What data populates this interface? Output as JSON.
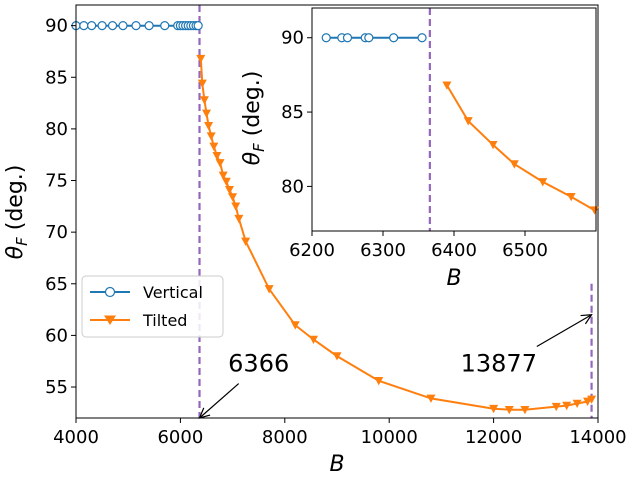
{
  "chart_data": [
    {
      "id": "main",
      "type": "line",
      "title": "",
      "xlabel": "B",
      "ylabel": "θ_F (deg.)",
      "ylabel_main": "θ",
      "ylabel_sub": "F",
      "ylabel_tail": " (deg.)",
      "xlim": [
        4000,
        14000
      ],
      "ylim": [
        52,
        92
      ],
      "xticks": [
        4000,
        6000,
        8000,
        10000,
        12000,
        14000
      ],
      "yticks": [
        55,
        60,
        65,
        70,
        75,
        80,
        85,
        90
      ],
      "grid": false,
      "legend_position": "lower-left",
      "series": [
        {
          "name": "Vertical",
          "color": "#1f77b4",
          "marker": "circle-open",
          "x": [
            4000,
            4150,
            4300,
            4500,
            4700,
            4900,
            5150,
            5400,
            5700,
            5950,
            6000,
            6050,
            6100,
            6150,
            6200,
            6250,
            6300,
            6340
          ],
          "y": [
            90,
            90,
            90,
            90,
            90,
            90,
            90,
            90,
            90,
            90,
            90,
            90,
            90,
            90,
            90,
            90,
            90,
            90
          ]
        },
        {
          "name": "Tilted",
          "color": "#ff7f0e",
          "marker": "triangle-down",
          "x": [
            6390,
            6420,
            6460,
            6500,
            6540,
            6590,
            6640,
            6700,
            6760,
            6820,
            6880,
            6940,
            7000,
            7060,
            7120,
            7250,
            7700,
            8200,
            8550,
            9000,
            9800,
            10800,
            12000,
            12300,
            12600,
            13200,
            13400,
            13600,
            13800,
            13877
          ],
          "y": [
            86.8,
            84.4,
            82.8,
            81.5,
            80.3,
            79.3,
            78.3,
            77.4,
            76.7,
            75.5,
            74.9,
            74.1,
            73.4,
            72.5,
            71.3,
            69.1,
            64.5,
            61.0,
            59.6,
            58.0,
            55.6,
            53.9,
            52.9,
            52.8,
            52.8,
            53.1,
            53.2,
            53.4,
            53.6,
            53.8
          ]
        }
      ],
      "vlines": [
        {
          "x": 6366,
          "color": "#9467bd",
          "ymin": 52,
          "ymax": 92
        },
        {
          "x": 13877,
          "color": "#9467bd",
          "ymin": 52,
          "ymax": 65
        }
      ],
      "annotations": [
        {
          "text": "6366",
          "point": [
            6366,
            52
          ],
          "text_at": [
            7500,
            56.5
          ]
        },
        {
          "text": "13877",
          "point": [
            13877,
            62
          ],
          "text_at": [
            12100,
            56.5
          ]
        }
      ]
    },
    {
      "id": "inset",
      "type": "line",
      "title": "",
      "xlabel": "B",
      "ylabel": "θ_F (deg.)",
      "ylabel_main": "θ",
      "ylabel_sub": "F",
      "ylabel_tail": " (deg.)",
      "xlim": [
        6200,
        6600
      ],
      "ylim": [
        77,
        92
      ],
      "xticks": [
        6200,
        6300,
        6400,
        6500
      ],
      "yticks": [
        80,
        85,
        90
      ],
      "grid": false,
      "series": [
        {
          "name": "Vertical",
          "color": "#1f77b4",
          "marker": "circle-open",
          "x": [
            6220,
            6242,
            6250,
            6275,
            6280,
            6315,
            6355
          ],
          "y": [
            90,
            90,
            90,
            90,
            90,
            90,
            90
          ]
        },
        {
          "name": "Tilted",
          "color": "#ff7f0e",
          "marker": "triangle-down",
          "x": [
            6390,
            6420,
            6455,
            6485,
            6525,
            6565,
            6598
          ],
          "y": [
            86.8,
            84.4,
            82.8,
            81.5,
            80.3,
            79.3,
            78.4
          ]
        }
      ],
      "vlines": [
        {
          "x": 6366,
          "color": "#9467bd",
          "ymin": 77,
          "ymax": 92
        }
      ]
    }
  ]
}
